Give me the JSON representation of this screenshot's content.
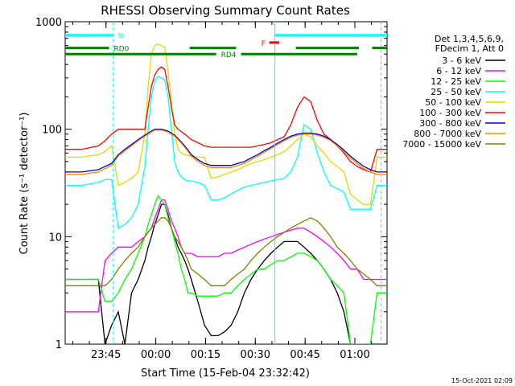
{
  "chart_data": {
    "type": "line",
    "title": "RHESSI Observing Summary Count Rates",
    "xlabel": "Start Time (15-Feb-04 23:32:42)",
    "ylabel": "Count Rate (s⁻¹ detector⁻¹)",
    "y_scale": "log",
    "ylim": [
      1,
      1000
    ],
    "y_ticks": [
      "1",
      "10",
      "100",
      "1000"
    ],
    "x_unit": "minutes after 23:32:42",
    "xlim": [
      0,
      97
    ],
    "x_ticks": [
      {
        "label": "23:45",
        "x": 12.3
      },
      {
        "label": "00:00",
        "x": 27.3
      },
      {
        "label": "00:15",
        "x": 42.3
      },
      {
        "label": "00:30",
        "x": 57.3
      },
      {
        "label": "00:45",
        "x": 72.3
      },
      {
        "label": "01:00",
        "x": 87.3
      }
    ],
    "legend_header": [
      "Det 1,3,4,5,6,9,",
      "FDecim 1, Att 0"
    ],
    "legend_placement": "right, outside plot",
    "series": [
      {
        "name": "3 - 6 keV",
        "color": "#000000",
        "x": [
          0,
          5,
          10,
          12,
          14,
          16,
          18,
          20,
          22,
          24,
          25,
          26,
          27,
          28,
          29,
          30,
          31,
          32,
          33,
          34,
          35,
          36,
          37,
          38,
          40,
          42,
          44,
          46,
          48,
          50,
          52,
          54,
          56,
          58,
          60,
          62,
          64,
          66,
          68,
          70,
          72,
          74,
          76,
          78,
          80,
          82,
          84,
          86,
          88,
          90,
          92,
          94,
          97
        ],
        "values": [
          4,
          4,
          4,
          1,
          1.5,
          2,
          1,
          3,
          4,
          6,
          8,
          10,
          13,
          16,
          20,
          20,
          16,
          12,
          10,
          8,
          7,
          6,
          5,
          4,
          2.5,
          1.5,
          1.2,
          1.2,
          1.3,
          1.5,
          2,
          3,
          4,
          5,
          6,
          7,
          8,
          9,
          9,
          9,
          8,
          7,
          6,
          5,
          4,
          3,
          2,
          1,
          1,
          1,
          1,
          1,
          1
        ]
      },
      {
        "name": "6 - 12 keV",
        "color": "#ff00ff",
        "x": [
          0,
          5,
          10,
          12,
          14,
          16,
          18,
          20,
          22,
          24,
          25,
          26,
          27,
          28,
          29,
          30,
          31,
          32,
          33,
          34,
          35,
          36,
          37,
          38,
          40,
          42,
          44,
          46,
          48,
          50,
          52,
          54,
          56,
          58,
          60,
          62,
          64,
          66,
          68,
          70,
          72,
          74,
          76,
          78,
          80,
          82,
          84,
          86,
          88,
          90,
          92,
          94,
          97
        ],
        "values": [
          2,
          2,
          2,
          6,
          7,
          8,
          8,
          8,
          9,
          10,
          11,
          12,
          15,
          18,
          22,
          22,
          18,
          14,
          12,
          10,
          8,
          7,
          7,
          7,
          6.5,
          6.5,
          6.5,
          6.5,
          7,
          7,
          7.5,
          8,
          8.5,
          9,
          9.5,
          10,
          10.5,
          11,
          11.5,
          12,
          12,
          11,
          10,
          9,
          8,
          7,
          6,
          5,
          5,
          4,
          4,
          4,
          4
        ]
      },
      {
        "name": "12 - 25 keV",
        "color": "#00ff00",
        "x": [
          0,
          5,
          10,
          12,
          14,
          16,
          18,
          20,
          22,
          24,
          25,
          26,
          27,
          28,
          29,
          30,
          31,
          32,
          33,
          34,
          35,
          36,
          37,
          38,
          40,
          42,
          44,
          46,
          48,
          50,
          52,
          54,
          56,
          58,
          60,
          62,
          64,
          66,
          68,
          70,
          72,
          74,
          76,
          78,
          80,
          82,
          84,
          86,
          88,
          90,
          92,
          94,
          97
        ],
        "values": [
          4,
          4,
          4,
          2.5,
          2.5,
          3,
          4,
          5,
          7,
          10,
          13,
          16,
          20,
          24,
          22,
          20,
          15,
          12,
          9,
          7,
          5,
          4,
          3,
          3,
          2.8,
          2.8,
          2.8,
          2.8,
          3,
          3,
          3.5,
          4,
          4.5,
          5,
          5,
          5.5,
          6,
          6,
          6.5,
          7,
          7,
          6.5,
          6,
          5,
          4,
          3.5,
          3,
          1,
          1,
          1,
          1,
          3,
          3
        ]
      },
      {
        "name": "25 - 50 keV",
        "color": "#00ffff",
        "x": [
          0,
          5,
          10,
          12,
          14,
          16,
          18,
          20,
          22,
          24,
          25,
          26,
          27,
          28,
          29,
          30,
          31,
          32,
          33,
          34,
          35,
          36,
          37,
          38,
          40,
          42,
          44,
          46,
          48,
          50,
          52,
          54,
          56,
          58,
          60,
          62,
          64,
          66,
          68,
          70,
          72,
          74,
          76,
          78,
          80,
          82,
          84,
          86,
          88,
          90,
          92,
          94,
          97
        ],
        "values": [
          30,
          30,
          32,
          34,
          34,
          12,
          13,
          15,
          20,
          45,
          100,
          200,
          280,
          310,
          300,
          290,
          200,
          100,
          50,
          40,
          36,
          34,
          33,
          33,
          32,
          30,
          22,
          22,
          23,
          25,
          27,
          29,
          30,
          31,
          32,
          33,
          34,
          35,
          40,
          55,
          110,
          100,
          60,
          40,
          30,
          28,
          26,
          18,
          18,
          18,
          18,
          30,
          30
        ]
      },
      {
        "name": "50 - 100 keV",
        "color": "#dddd00",
        "x": [
          0,
          5,
          10,
          12,
          14,
          16,
          18,
          20,
          22,
          24,
          25,
          26,
          27,
          28,
          29,
          30,
          31,
          32,
          33,
          34,
          35,
          36,
          37,
          38,
          40,
          42,
          44,
          46,
          48,
          50,
          52,
          54,
          56,
          58,
          60,
          62,
          64,
          66,
          68,
          70,
          72,
          74,
          76,
          78,
          80,
          82,
          84,
          86,
          88,
          90,
          92,
          94,
          97
        ],
        "values": [
          55,
          55,
          58,
          62,
          70,
          30,
          32,
          35,
          40,
          90,
          250,
          500,
          600,
          620,
          600,
          580,
          350,
          180,
          90,
          65,
          60,
          58,
          57,
          56,
          55,
          55,
          35,
          36,
          38,
          40,
          42,
          45,
          48,
          50,
          52,
          55,
          58,
          62,
          70,
          80,
          90,
          85,
          70,
          60,
          50,
          45,
          40,
          25,
          22,
          20,
          20,
          55,
          55
        ]
      },
      {
        "name": "100 - 300 keV",
        "color": "#ff0000",
        "x": [
          0,
          5,
          10,
          12,
          14,
          16,
          18,
          20,
          22,
          24,
          25,
          26,
          27,
          28,
          29,
          30,
          31,
          32,
          33,
          34,
          35,
          36,
          37,
          38,
          40,
          42,
          44,
          46,
          48,
          50,
          52,
          54,
          56,
          58,
          60,
          62,
          64,
          66,
          68,
          70,
          72,
          74,
          76,
          78,
          80,
          82,
          84,
          86,
          88,
          90,
          92,
          94,
          97
        ],
        "values": [
          65,
          65,
          70,
          78,
          90,
          100,
          100,
          100,
          100,
          100,
          160,
          250,
          320,
          360,
          380,
          360,
          250,
          160,
          110,
          100,
          95,
          90,
          85,
          80,
          75,
          70,
          68,
          68,
          68,
          68,
          68,
          68,
          68,
          70,
          72,
          75,
          80,
          85,
          110,
          160,
          200,
          180,
          120,
          90,
          80,
          70,
          60,
          50,
          45,
          42,
          40,
          65,
          65
        ]
      },
      {
        "name": "300 - 800 keV",
        "color": "#0000cc",
        "x": [
          0,
          5,
          10,
          12,
          14,
          16,
          18,
          20,
          22,
          24,
          25,
          26,
          27,
          28,
          29,
          30,
          31,
          32,
          33,
          34,
          35,
          36,
          37,
          38,
          40,
          42,
          44,
          46,
          48,
          50,
          52,
          54,
          56,
          58,
          60,
          62,
          64,
          66,
          68,
          70,
          72,
          74,
          76,
          78,
          80,
          82,
          84,
          86,
          88,
          90,
          92,
          94,
          97
        ],
        "values": [
          40,
          40,
          42,
          45,
          48,
          58,
          65,
          72,
          80,
          88,
          92,
          96,
          100,
          100,
          100,
          98,
          96,
          92,
          88,
          82,
          76,
          70,
          64,
          58,
          52,
          48,
          46,
          46,
          46,
          46,
          48,
          50,
          54,
          58,
          63,
          68,
          74,
          80,
          86,
          90,
          92,
          92,
          90,
          86,
          80,
          72,
          64,
          56,
          50,
          45,
          42,
          40,
          40
        ]
      },
      {
        "name": "800 - 7000 keV",
        "color": "#ff8800",
        "x": [
          0,
          5,
          10,
          12,
          14,
          16,
          18,
          20,
          22,
          24,
          25,
          26,
          27,
          28,
          29,
          30,
          31,
          32,
          33,
          34,
          35,
          36,
          37,
          38,
          40,
          42,
          44,
          46,
          48,
          50,
          52,
          54,
          56,
          58,
          60,
          62,
          64,
          66,
          68,
          70,
          72,
          74,
          76,
          78,
          80,
          82,
          84,
          86,
          88,
          90,
          92,
          94,
          97
        ],
        "values": [
          38,
          38,
          40,
          43,
          46,
          56,
          63,
          70,
          78,
          86,
          90,
          94,
          98,
          98,
          98,
          96,
          94,
          90,
          86,
          80,
          74,
          68,
          62,
          56,
          50,
          46,
          44,
          44,
          44,
          44,
          46,
          48,
          52,
          56,
          61,
          66,
          72,
          78,
          84,
          88,
          90,
          90,
          88,
          84,
          78,
          70,
          62,
          54,
          48,
          43,
          40,
          38,
          38
        ]
      },
      {
        "name": "7000 - 15000 keV",
        "color": "#808000",
        "x": [
          0,
          5,
          10,
          12,
          14,
          16,
          18,
          20,
          22,
          24,
          25,
          26,
          27,
          28,
          29,
          30,
          31,
          32,
          33,
          34,
          35,
          36,
          37,
          38,
          40,
          42,
          44,
          46,
          48,
          50,
          52,
          54,
          56,
          58,
          60,
          62,
          64,
          66,
          68,
          70,
          72,
          74,
          76,
          78,
          80,
          82,
          84,
          86,
          88,
          90,
          92,
          94,
          97
        ],
        "values": [
          3.5,
          3.5,
          3.5,
          3.5,
          4,
          5,
          6,
          7,
          8,
          10,
          11,
          12,
          13,
          14,
          15,
          15,
          14,
          12,
          10,
          9,
          8,
          7,
          6,
          5,
          4.5,
          4,
          3.5,
          3.5,
          3.5,
          4,
          4.5,
          5,
          6,
          7,
          8,
          9,
          10,
          11,
          12,
          13,
          14,
          15,
          14,
          12,
          10,
          8,
          7,
          6,
          5,
          4.5,
          4,
          3.5,
          3.5
        ]
      }
    ],
    "annotations": {
      "night_bars": [
        {
          "label": "N",
          "x_start": 0,
          "x_end": 14.5,
          "y": 750,
          "color": "#00ffff"
        },
        {
          "label": "",
          "x_start": 63.2,
          "x_end": 97,
          "y": 750,
          "color": "#00ffff"
        }
      ],
      "saa_flags": [
        {
          "label": "RD0",
          "x_start": 0,
          "x_end": 13.2,
          "y": 570,
          "color": "#008000"
        },
        {
          "label": "",
          "x_start": 37.5,
          "x_end": 51.5,
          "y": 570,
          "color": "#008000"
        },
        {
          "label": "",
          "x_start": 69.5,
          "x_end": 88.5,
          "y": 570,
          "color": "#008000"
        },
        {
          "label": "",
          "x_start": 92.5,
          "x_end": 97,
          "y": 570,
          "color": "#008000"
        },
        {
          "label": "RD4",
          "x_start": 0,
          "x_end": 45.5,
          "y": 500,
          "color": "#008000"
        },
        {
          "label": "",
          "x_start": 53,
          "x_end": 88,
          "y": 500,
          "color": "#008000"
        }
      ],
      "flare_flag": {
        "label": "F",
        "x_start": 61.5,
        "x_end": 64.5,
        "y": 640,
        "color": "#ff0000"
      },
      "vertical_markers": [
        {
          "x": 14.5,
          "color": "#00ffff",
          "style": "dashed"
        },
        {
          "x": 63.2,
          "color": "#00ffff",
          "style": "solid"
        },
        {
          "x": 95.2,
          "color": "#00ffff",
          "style": "dashed"
        }
      ]
    },
    "grid": false,
    "footer_timestamp": "15-Oct-2021 02:09"
  }
}
